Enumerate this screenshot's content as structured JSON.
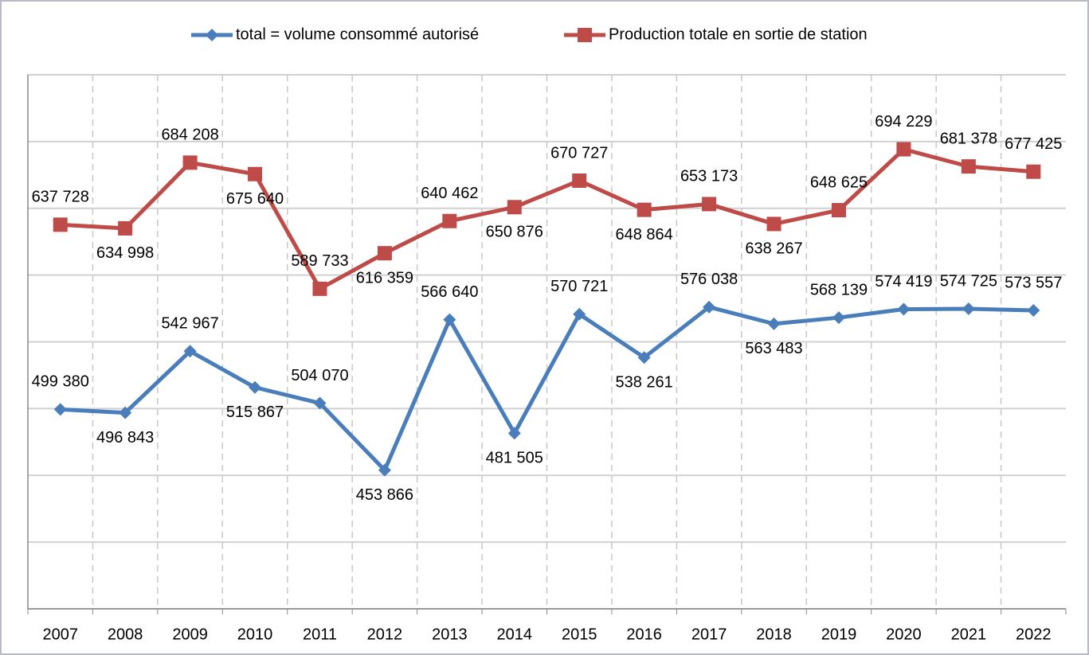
{
  "chart_data": {
    "type": "line",
    "categories": [
      "2007",
      "2008",
      "2009",
      "2010",
      "2011",
      "2012",
      "2013",
      "2014",
      "2015",
      "2016",
      "2017",
      "2018",
      "2019",
      "2020",
      "2021",
      "2022"
    ],
    "series": [
      {
        "name": "total = volume consommé autorisé",
        "color": "#4a7ebb",
        "marker": "diamond",
        "values": [
          499380,
          496843,
          542967,
          515867,
          504070,
          453866,
          566640,
          481505,
          570721,
          538261,
          576038,
          563483,
          568139,
          574419,
          574725,
          573557
        ],
        "value_labels": [
          "499 380",
          "496 843",
          "542 967",
          "515 867",
          "504 070",
          "453 866",
          "566 640",
          "481 505",
          "570 721",
          "538 261",
          "576 038",
          "563 483",
          "568 139",
          "574 419",
          "574 725",
          "573 557"
        ]
      },
      {
        "name": "Production totale en sortie de station",
        "color": "#be4b48",
        "marker": "square",
        "values": [
          637728,
          634998,
          684208,
          675640,
          589733,
          616359,
          640462,
          650876,
          670727,
          648864,
          653173,
          638267,
          648625,
          694229,
          681378,
          677425
        ],
        "value_labels": [
          "637 728",
          "634 998",
          "684 208",
          "675 640",
          "589 733",
          "616 359",
          "640 462",
          "650 876",
          "670 727",
          "648 864",
          "653 173",
          "638 267",
          "648 625",
          "694 229",
          "681 378",
          "677 425"
        ]
      }
    ],
    "ylim": [
      350000,
      750000
    ],
    "yticks": [
      350000,
      400000,
      450000,
      500000,
      550000,
      600000,
      650000,
      700000,
      750000
    ],
    "grid": true,
    "legend": "top"
  }
}
